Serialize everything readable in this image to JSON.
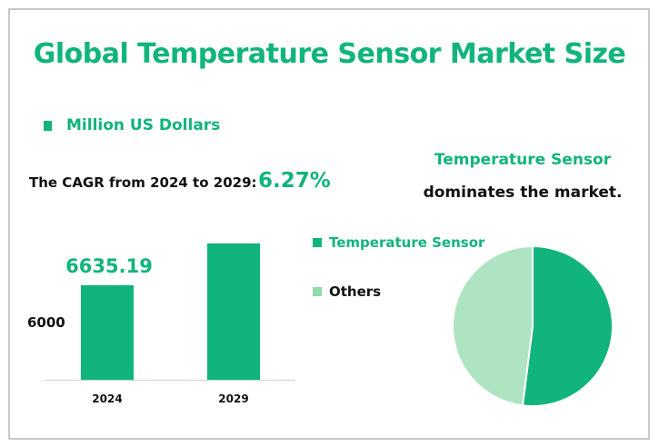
{
  "title": "Global Temperature Sensor Market Size",
  "unit_label": "Million US Dollars",
  "cagr_label": "The CAGR from 2024 to 2029:",
  "cagr_value": "6.27%",
  "pie_heading": {
    "line1": "Temperature Sensor",
    "line2": "dominates the market."
  },
  "colors": {
    "primary": "#10b47c",
    "secondary": "#aee4c2",
    "text": "#111111"
  },
  "chart_data": [
    {
      "type": "bar",
      "categories": [
        "2024",
        "2029"
      ],
      "values": [
        6635.19,
        8994
      ],
      "data_labels": [
        "6635.19",
        ""
      ],
      "ytick_label": "6000",
      "ylim": [
        1300,
        9500
      ],
      "grid": false
    },
    {
      "type": "pie",
      "legend": "left",
      "slices": [
        {
          "label": "Temperature Sensor",
          "value": 52
        },
        {
          "label": "Others",
          "value": 48
        }
      ]
    }
  ]
}
